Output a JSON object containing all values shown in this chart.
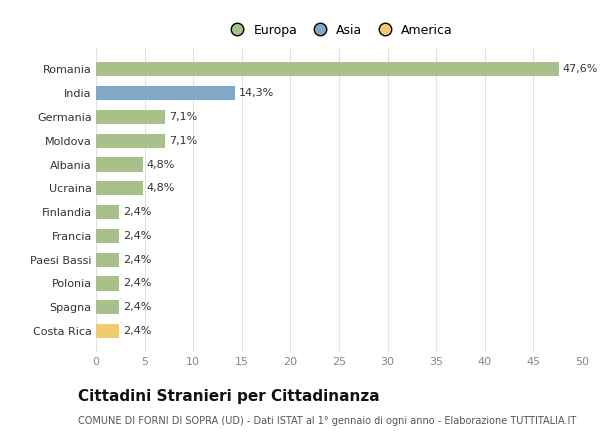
{
  "categories": [
    "Romania",
    "India",
    "Germania",
    "Moldova",
    "Albania",
    "Ucraina",
    "Finlandia",
    "Francia",
    "Paesi Bassi",
    "Polonia",
    "Spagna",
    "Costa Rica"
  ],
  "values": [
    47.6,
    14.3,
    7.1,
    7.1,
    4.8,
    4.8,
    2.4,
    2.4,
    2.4,
    2.4,
    2.4,
    2.4
  ],
  "labels": [
    "47,6%",
    "14,3%",
    "7,1%",
    "7,1%",
    "4,8%",
    "4,8%",
    "2,4%",
    "2,4%",
    "2,4%",
    "2,4%",
    "2,4%",
    "2,4%"
  ],
  "continents": [
    "Europa",
    "Asia",
    "Europa",
    "Europa",
    "Europa",
    "Europa",
    "Europa",
    "Europa",
    "Europa",
    "Europa",
    "Europa",
    "America"
  ],
  "colors": {
    "Europa": "#a8c08a",
    "Asia": "#7fa8c9",
    "America": "#f0cc6e"
  },
  "legend_labels": [
    "Europa",
    "Asia",
    "America"
  ],
  "legend_colors": [
    "#a8c08a",
    "#7fa8c9",
    "#f0cc6e"
  ],
  "xlim": [
    0,
    50
  ],
  "xticks": [
    0,
    5,
    10,
    15,
    20,
    25,
    30,
    35,
    40,
    45,
    50
  ],
  "title": "Cittadini Stranieri per Cittadinanza",
  "subtitle": "COMUNE DI FORNI DI SOPRA (UD) - Dati ISTAT al 1° gennaio di ogni anno - Elaborazione TUTTITALIA.IT",
  "background_color": "#ffffff",
  "grid_color": "#e0e0e0",
  "bar_height": 0.6,
  "title_fontsize": 11,
  "subtitle_fontsize": 7,
  "label_fontsize": 8,
  "tick_fontsize": 8,
  "legend_fontsize": 9
}
